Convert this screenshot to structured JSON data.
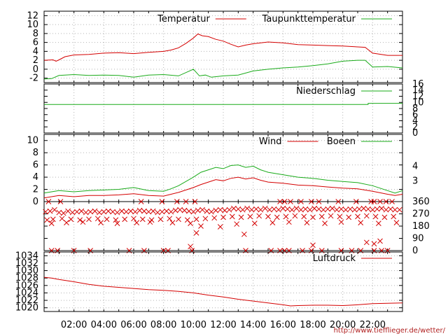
{
  "x_axis": {
    "range_hours": [
      0,
      24
    ],
    "ticks": [
      {
        "h": 2,
        "label": "02:00"
      },
      {
        "h": 4,
        "label": "04:00"
      },
      {
        "h": 6,
        "label": "06:00"
      },
      {
        "h": 8,
        "label": "08:00"
      },
      {
        "h": 10,
        "label": "10:00"
      },
      {
        "h": 12,
        "label": "12:00"
      },
      {
        "h": 14,
        "label": "14:00"
      },
      {
        "h": 16,
        "label": "16:00"
      },
      {
        "h": 18,
        "label": "18:00"
      },
      {
        "h": 20,
        "label": "20:00"
      },
      {
        "h": 22,
        "label": "22:00"
      }
    ]
  },
  "credit": "http://www.tiefflieger.de/wetter/",
  "colors": {
    "red": "#d40000",
    "green": "#1aab1a"
  },
  "chart_data": [
    {
      "id": "temp",
      "type": "line",
      "ylim": [
        -3,
        13
      ],
      "yticks": [
        -2,
        0,
        2,
        4,
        6,
        8,
        10,
        12
      ],
      "legend": [
        {
          "name": "Temperatur",
          "color": "red"
        },
        {
          "name": "Taupunkttemperatur",
          "color": "green"
        }
      ],
      "series": [
        {
          "name": "Temperatur",
          "color": "red",
          "x": [
            0,
            0.6,
            0.8,
            1.0,
            1.4,
            2.0,
            3.0,
            4.0,
            5.0,
            6.0,
            7.0,
            8.0,
            8.5,
            9.0,
            9.5,
            10.0,
            10.3,
            10.6,
            11.0,
            11.5,
            12.0,
            12.5,
            13.0,
            13.5,
            14.0,
            15.0,
            16.0,
            17.0,
            18.0,
            19.0,
            20.0,
            21.0,
            21.5,
            22.0,
            23.0,
            24.0
          ],
          "y": [
            2.0,
            2.1,
            1.8,
            2.1,
            2.8,
            3.2,
            3.3,
            3.6,
            3.7,
            3.5,
            3.8,
            4.0,
            4.3,
            4.8,
            5.8,
            7.0,
            7.9,
            7.5,
            7.3,
            6.7,
            6.3,
            5.6,
            5.0,
            5.4,
            5.7,
            6.1,
            5.9,
            5.5,
            5.4,
            5.3,
            5.2,
            5.0,
            4.9,
            3.6,
            3.1,
            3.1
          ]
        },
        {
          "name": "Taupunkttemperatur",
          "color": "green",
          "x": [
            0,
            0.5,
            1.0,
            2.0,
            3.0,
            4.0,
            5.0,
            6.0,
            7.0,
            8.0,
            9.0,
            9.6,
            10.0,
            10.4,
            10.8,
            11.2,
            12.0,
            13.0,
            14.0,
            15.0,
            16.0,
            17.0,
            18.0,
            19.0,
            20.0,
            21.0,
            21.5,
            22.0,
            23.0,
            24.0
          ],
          "y": [
            -2.2,
            -2.1,
            -1.4,
            -1.2,
            -1.4,
            -1.3,
            -1.4,
            -1.8,
            -1.3,
            -1.2,
            -1.5,
            -0.6,
            0.0,
            -1.5,
            -1.3,
            -1.8,
            -1.5,
            -1.3,
            -0.4,
            0.0,
            0.3,
            0.5,
            0.8,
            1.2,
            1.8,
            2.0,
            2.0,
            0.5,
            0.6,
            0.3
          ]
        }
      ]
    },
    {
      "id": "rain",
      "type": "line",
      "ylim": [
        0,
        16
      ],
      "yticks": [
        0,
        2,
        4,
        6,
        8,
        10,
        12,
        14,
        16
      ],
      "legend": [
        {
          "name": "Niederschlag",
          "color": "green"
        }
      ],
      "series": [
        {
          "name": "Niederschlag",
          "color": "green",
          "x": [
            0,
            21.7,
            21.7,
            24
          ],
          "y": [
            9.3,
            9.3,
            9.7,
            9.7
          ]
        }
      ]
    },
    {
      "id": "wind",
      "type": "line",
      "ylim": [
        0,
        11
      ],
      "yticks": [
        0,
        2,
        4,
        6,
        8,
        10
      ],
      "right_ticks": [
        "4",
        "3"
      ],
      "legend": [
        {
          "name": "Wind",
          "color": "red"
        },
        {
          "name": "Boeen",
          "color": "green"
        }
      ],
      "series": [
        {
          "name": "Wind",
          "color": "red",
          "x": [
            0,
            1,
            2,
            3,
            4,
            5,
            6,
            7,
            8,
            8.5,
            9,
            10,
            10.5,
            11,
            11.5,
            12,
            12.5,
            13,
            13.5,
            14,
            14.5,
            15,
            16,
            17,
            18,
            19,
            20,
            21,
            22,
            23,
            23.5,
            24
          ],
          "y": [
            0.6,
            1.0,
            0.8,
            1.0,
            1.0,
            1.1,
            1.3,
            1.0,
            0.9,
            1.2,
            1.5,
            2.3,
            2.8,
            3.2,
            3.6,
            3.4,
            3.8,
            4.0,
            3.7,
            3.9,
            3.5,
            3.2,
            3.0,
            2.7,
            2.6,
            2.4,
            2.2,
            2.1,
            1.7,
            1.2,
            1.0,
            1.2
          ]
        },
        {
          "name": "Boeen",
          "color": "green",
          "x": [
            0,
            1,
            2,
            3,
            4,
            5,
            6,
            7,
            8,
            8.5,
            9,
            10,
            10.5,
            11,
            11.5,
            12,
            12.5,
            13,
            13.5,
            14,
            14.5,
            15,
            16,
            17,
            18,
            19,
            20,
            21,
            22,
            23,
            23.5,
            24
          ],
          "y": [
            1.4,
            1.8,
            1.6,
            1.8,
            1.9,
            2.0,
            2.3,
            1.8,
            1.7,
            2.1,
            2.6,
            4.0,
            4.8,
            5.2,
            5.6,
            5.4,
            5.9,
            6.0,
            5.6,
            5.8,
            5.2,
            4.8,
            4.4,
            4.0,
            3.8,
            3.5,
            3.3,
            3.1,
            2.6,
            1.8,
            1.4,
            1.8
          ]
        }
      ]
    },
    {
      "id": "dir",
      "type": "scatter",
      "ylim": [
        0,
        360
      ],
      "yticks": [
        0,
        90,
        180,
        270,
        360
      ],
      "series": [
        {
          "name": "direction",
          "color": "red",
          "marker": "x",
          "x": [
            0.1,
            0.4,
            0.7,
            1.0,
            1.3,
            1.6,
            1.9,
            2.2,
            2.5,
            2.8,
            3.1,
            3.4,
            3.7,
            4.0,
            4.3,
            4.6,
            4.9,
            5.2,
            5.5,
            5.8,
            6.1,
            6.4,
            6.7,
            7.0,
            7.3,
            7.6,
            7.9,
            8.2,
            8.5,
            8.8,
            9.1,
            9.4,
            9.7,
            10.0,
            10.3,
            10.6,
            10.9,
            11.2,
            11.5,
            11.8,
            12.1,
            12.4,
            12.7,
            13.0,
            13.3,
            13.6,
            13.9,
            14.2,
            14.5,
            14.8,
            15.1,
            15.4,
            15.7,
            16.0,
            16.3,
            16.6,
            16.9,
            17.2,
            17.5,
            17.8,
            18.1,
            18.4,
            18.7,
            19.0,
            19.3,
            19.6,
            19.9,
            20.2,
            20.5,
            20.8,
            21.1,
            21.4,
            21.7,
            22.0,
            22.3,
            22.6,
            22.9,
            23.2,
            23.5,
            23.8,
            0.2,
            0.6,
            1.2,
            1.8,
            2.4,
            3.0,
            3.6,
            4.2,
            4.8,
            5.4,
            6.0,
            6.6,
            7.2,
            7.8,
            8.4,
            9.0,
            9.6,
            10.2,
            10.8,
            11.4,
            12.0,
            12.6,
            13.2,
            13.8,
            14.4,
            15.0,
            15.6,
            16.2,
            16.8,
            17.4,
            18.0,
            18.6,
            19.2,
            19.8,
            20.4,
            21.0,
            21.6,
            22.2,
            22.8,
            23.4,
            0.5,
            1.5,
            2.6,
            3.8,
            4.9,
            6.2,
            7.1,
            8.6,
            9.8,
            10.5,
            11.8,
            12.9,
            14.1,
            15.3,
            16.4,
            17.6,
            18.8,
            19.9,
            21.2,
            22.4,
            23.6,
            0.3,
            1.1,
            6.5,
            7.9,
            8.9,
            9.5,
            10.1,
            15.8,
            16.1,
            16.5,
            17.2,
            17.9,
            18.4,
            19.7,
            20.9,
            21.9,
            22.1,
            22.5,
            22.9,
            23.3,
            9.8,
            10.2,
            13.4,
            18.0,
            21.6,
            22.1,
            22.5
          ],
          "y": [
            285,
            290,
            300,
            280,
            275,
            290,
            280,
            285,
            290,
            280,
            285,
            290,
            280,
            285,
            290,
            285,
            280,
            290,
            285,
            290,
            285,
            295,
            290,
            285,
            290,
            280,
            285,
            290,
            285,
            295,
            300,
            295,
            290,
            285,
            295,
            300,
            290,
            285,
            295,
            300,
            295,
            300,
            310,
            305,
            300,
            310,
            300,
            305,
            300,
            310,
            300,
            305,
            300,
            310,
            305,
            300,
            310,
            300,
            305,
            300,
            310,
            305,
            300,
            305,
            310,
            300,
            305,
            300,
            305,
            300,
            305,
            310,
            305,
            300,
            305,
            310,
            300,
            305,
            300,
            300,
            225,
            230,
            235,
            230,
            225,
            230,
            235,
            230,
            225,
            230,
            235,
            230,
            225,
            230,
            235,
            230,
            225,
            230,
            235,
            240,
            245,
            250,
            245,
            250,
            255,
            250,
            245,
            250,
            255,
            250,
            245,
            250,
            255,
            250,
            245,
            250,
            255,
            250,
            245,
            250,
            200,
            205,
            210,
            205,
            200,
            205,
            210,
            205,
            200,
            180,
            175,
            195,
            200,
            205,
            210,
            205,
            200,
            210,
            205,
            200,
            205,
            360,
            360,
            360,
            360,
            360,
            360,
            360,
            360,
            360,
            360,
            360,
            360,
            360,
            360,
            360,
            360,
            360,
            360,
            360,
            360,
            30,
            130,
            120,
            40,
            60,
            50,
            70
          ]
        },
        {
          "name": "calm",
          "color": "red",
          "marker": "x",
          "x": [
            0.5,
            0.9,
            2.0,
            3.1,
            5.7,
            6.7,
            8.0,
            8.3,
            9.9,
            13.5,
            15.2,
            15.8,
            16.1,
            16.4,
            17.3,
            17.9,
            18.6,
            19.9,
            20.6,
            21.2,
            22.1,
            22.6,
            23.0
          ],
          "y": [
            0,
            0,
            0,
            0,
            0,
            0,
            0,
            0,
            0,
            0,
            0,
            0,
            0,
            0,
            0,
            0,
            0,
            0,
            0,
            0,
            0,
            0,
            0
          ]
        }
      ]
    },
    {
      "id": "pressure",
      "type": "line",
      "ylim": [
        1019,
        1035
      ],
      "yticks": [
        1020,
        1022,
        1024,
        1026,
        1028,
        1030,
        1032,
        1034
      ],
      "legend": [
        {
          "name": "Luftdruck",
          "color": "red"
        }
      ],
      "series": [
        {
          "name": "Luftdruck",
          "color": "red",
          "x": [
            0,
            0.5,
            1.0,
            2.0,
            3.0,
            4.0,
            5.0,
            6.0,
            7.0,
            8.0,
            9.0,
            10.0,
            11.0,
            12.0,
            13.0,
            14.0,
            15.0,
            16.0,
            16.5,
            17.0,
            18.0,
            19.0,
            20.0,
            20.5,
            21.0,
            22.0,
            23.0,
            24.0
          ],
          "y": [
            1028.2,
            1028.0,
            1027.6,
            1027.0,
            1026.3,
            1025.8,
            1025.5,
            1025.2,
            1024.9,
            1024.7,
            1024.4,
            1024.0,
            1023.4,
            1022.9,
            1022.3,
            1021.8,
            1021.3,
            1020.8,
            1020.5,
            1020.6,
            1020.7,
            1020.7,
            1020.6,
            1020.7,
            1020.8,
            1021.1,
            1021.2,
            1021.3
          ]
        }
      ]
    }
  ]
}
